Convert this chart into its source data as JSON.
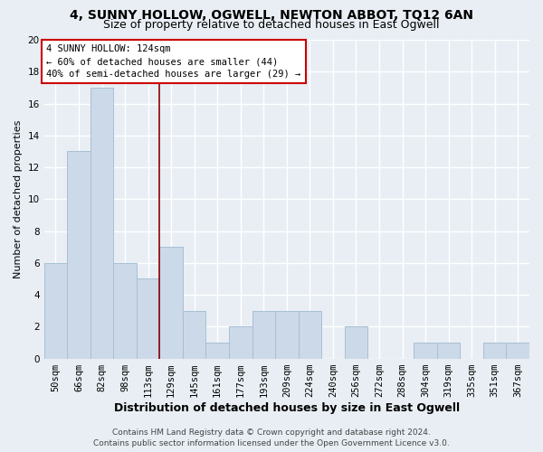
{
  "title": "4, SUNNY HOLLOW, OGWELL, NEWTON ABBOT, TQ12 6AN",
  "subtitle": "Size of property relative to detached houses in East Ogwell",
  "xlabel": "Distribution of detached houses by size in East Ogwell",
  "ylabel": "Number of detached properties",
  "footer_line1": "Contains HM Land Registry data © Crown copyright and database right 2024.",
  "footer_line2": "Contains public sector information licensed under the Open Government Licence v3.0.",
  "categories": [
    "50sqm",
    "66sqm",
    "82sqm",
    "98sqm",
    "113sqm",
    "129sqm",
    "145sqm",
    "161sqm",
    "177sqm",
    "193sqm",
    "209sqm",
    "224sqm",
    "240sqm",
    "256sqm",
    "272sqm",
    "288sqm",
    "304sqm",
    "319sqm",
    "335sqm",
    "351sqm",
    "367sqm"
  ],
  "values": [
    6,
    13,
    17,
    6,
    5,
    7,
    3,
    1,
    2,
    3,
    3,
    3,
    0,
    2,
    0,
    0,
    1,
    1,
    0,
    1,
    1
  ],
  "bar_color": "#ccd9e8",
  "bar_edge_color": "#a8bfd4",
  "ylim": [
    0,
    20
  ],
  "yticks": [
    0,
    2,
    4,
    6,
    8,
    10,
    12,
    14,
    16,
    18,
    20
  ],
  "property_line_x": 4.5,
  "annotation_text_line1": "4 SUNNY HOLLOW: 124sqm",
  "annotation_text_line2": "← 60% of detached houses are smaller (44)",
  "annotation_text_line3": "40% of semi-detached houses are larger (29) →",
  "background_color": "#e8eef4",
  "plot_background_color": "#e8eef4",
  "grid_color": "#ffffff",
  "title_fontsize": 10,
  "subtitle_fontsize": 9,
  "xlabel_fontsize": 9,
  "ylabel_fontsize": 8,
  "tick_fontsize": 7.5,
  "annotation_fontsize": 7.5,
  "footer_fontsize": 6.5
}
